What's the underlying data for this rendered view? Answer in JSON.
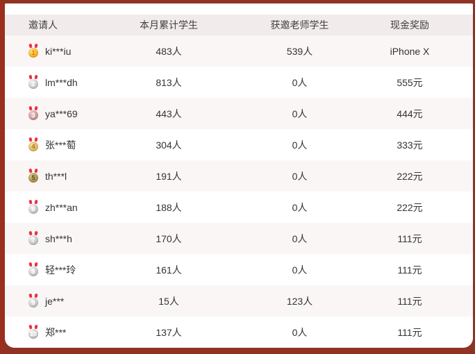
{
  "colors": {
    "page_background": "#8f3325",
    "panel_background": "#ffffff",
    "header_background": "#f1ebeb",
    "row_alt_background": "#faf6f6",
    "ribbon_red": "#e8304a"
  },
  "table": {
    "columns": [
      {
        "key": "inviter",
        "label": "邀请人"
      },
      {
        "key": "monthly_students",
        "label": "本月累计学生"
      },
      {
        "key": "teacher_students",
        "label": "获邀老师学生"
      },
      {
        "key": "cash_reward",
        "label": "现金奖励"
      }
    ],
    "rows": [
      {
        "rank": 1,
        "medal": "gold",
        "name": "ki***iu",
        "monthly": "483人",
        "teacher": "539人",
        "reward": "iPhone X"
      },
      {
        "rank": 2,
        "medal": "silver",
        "name": "lm***dh",
        "monthly": "813人",
        "teacher": "0人",
        "reward": "555元"
      },
      {
        "rank": 3,
        "medal": "bronze",
        "name": "ya***69",
        "monthly": "443人",
        "teacher": "0人",
        "reward": "444元"
      },
      {
        "rank": 4,
        "medal": "tan",
        "name": "张***萄",
        "monthly": "304人",
        "teacher": "0人",
        "reward": "333元"
      },
      {
        "rank": 5,
        "medal": "olive",
        "name": "th***l",
        "monthly": "191人",
        "teacher": "0人",
        "reward": "222元"
      },
      {
        "rank": 6,
        "medal": "grey",
        "name": "zh***an",
        "monthly": "188人",
        "teacher": "0人",
        "reward": "222元"
      },
      {
        "rank": 7,
        "medal": "grey",
        "name": "sh***h",
        "monthly": "170人",
        "teacher": "0人",
        "reward": "111元"
      },
      {
        "rank": 8,
        "medal": "grey",
        "name": "轻***玲",
        "monthly": "161人",
        "teacher": "0人",
        "reward": "111元"
      },
      {
        "rank": 9,
        "medal": "grey",
        "name": "je***",
        "monthly": "15人",
        "teacher": "123人",
        "reward": "111元"
      },
      {
        "rank": 10,
        "medal": "grey",
        "name": "郑***",
        "monthly": "137人",
        "teacher": "0人",
        "reward": "111元"
      }
    ]
  }
}
